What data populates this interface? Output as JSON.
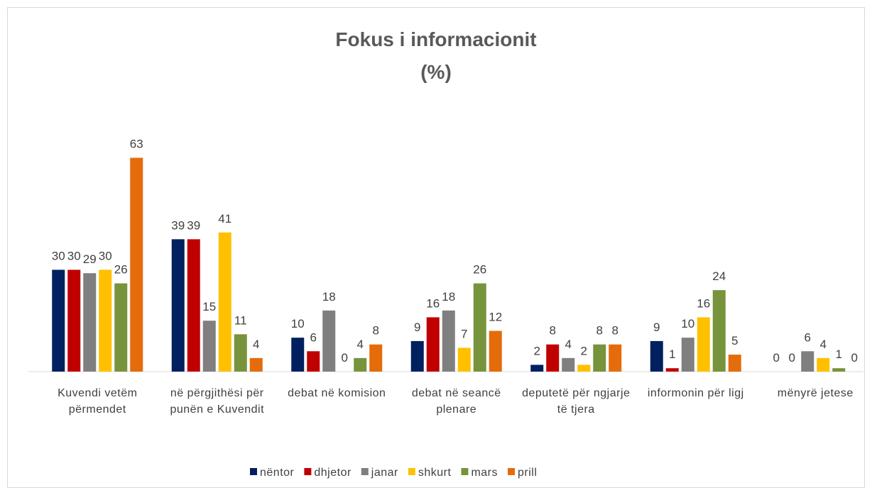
{
  "chart_data": {
    "type": "bar",
    "title": "Fokus i informacionit",
    "subtitle": "(%)",
    "categories": [
      "Kuvendi vetëm përmendet",
      "në përgjithësi për punën e Kuvendit",
      "debat në komision",
      "debat në seancë plenare",
      "deputetë për ngjarje të tjera",
      "informonin për ligj",
      "mënyrë jetese"
    ],
    "series": [
      {
        "name": "nëntor",
        "color": "#002060",
        "values": [
          30,
          39,
          10,
          9,
          2,
          9,
          0
        ]
      },
      {
        "name": "dhjetor",
        "color": "#c00000",
        "values": [
          30,
          39,
          6,
          16,
          8,
          1,
          0
        ]
      },
      {
        "name": "janar",
        "color": "#7f7f7f",
        "values": [
          29,
          15,
          18,
          18,
          4,
          10,
          6
        ]
      },
      {
        "name": "shkurt",
        "color": "#ffc000",
        "values": [
          30,
          41,
          0,
          7,
          2,
          16,
          4
        ]
      },
      {
        "name": "mars",
        "color": "#77933c",
        "values": [
          26,
          11,
          4,
          26,
          8,
          24,
          1
        ]
      },
      {
        "name": "prill",
        "color": "#e46c0a",
        "values": [
          63,
          4,
          8,
          12,
          8,
          5,
          0
        ]
      }
    ],
    "ylim": [
      0,
      70
    ],
    "legend": "bottom"
  }
}
